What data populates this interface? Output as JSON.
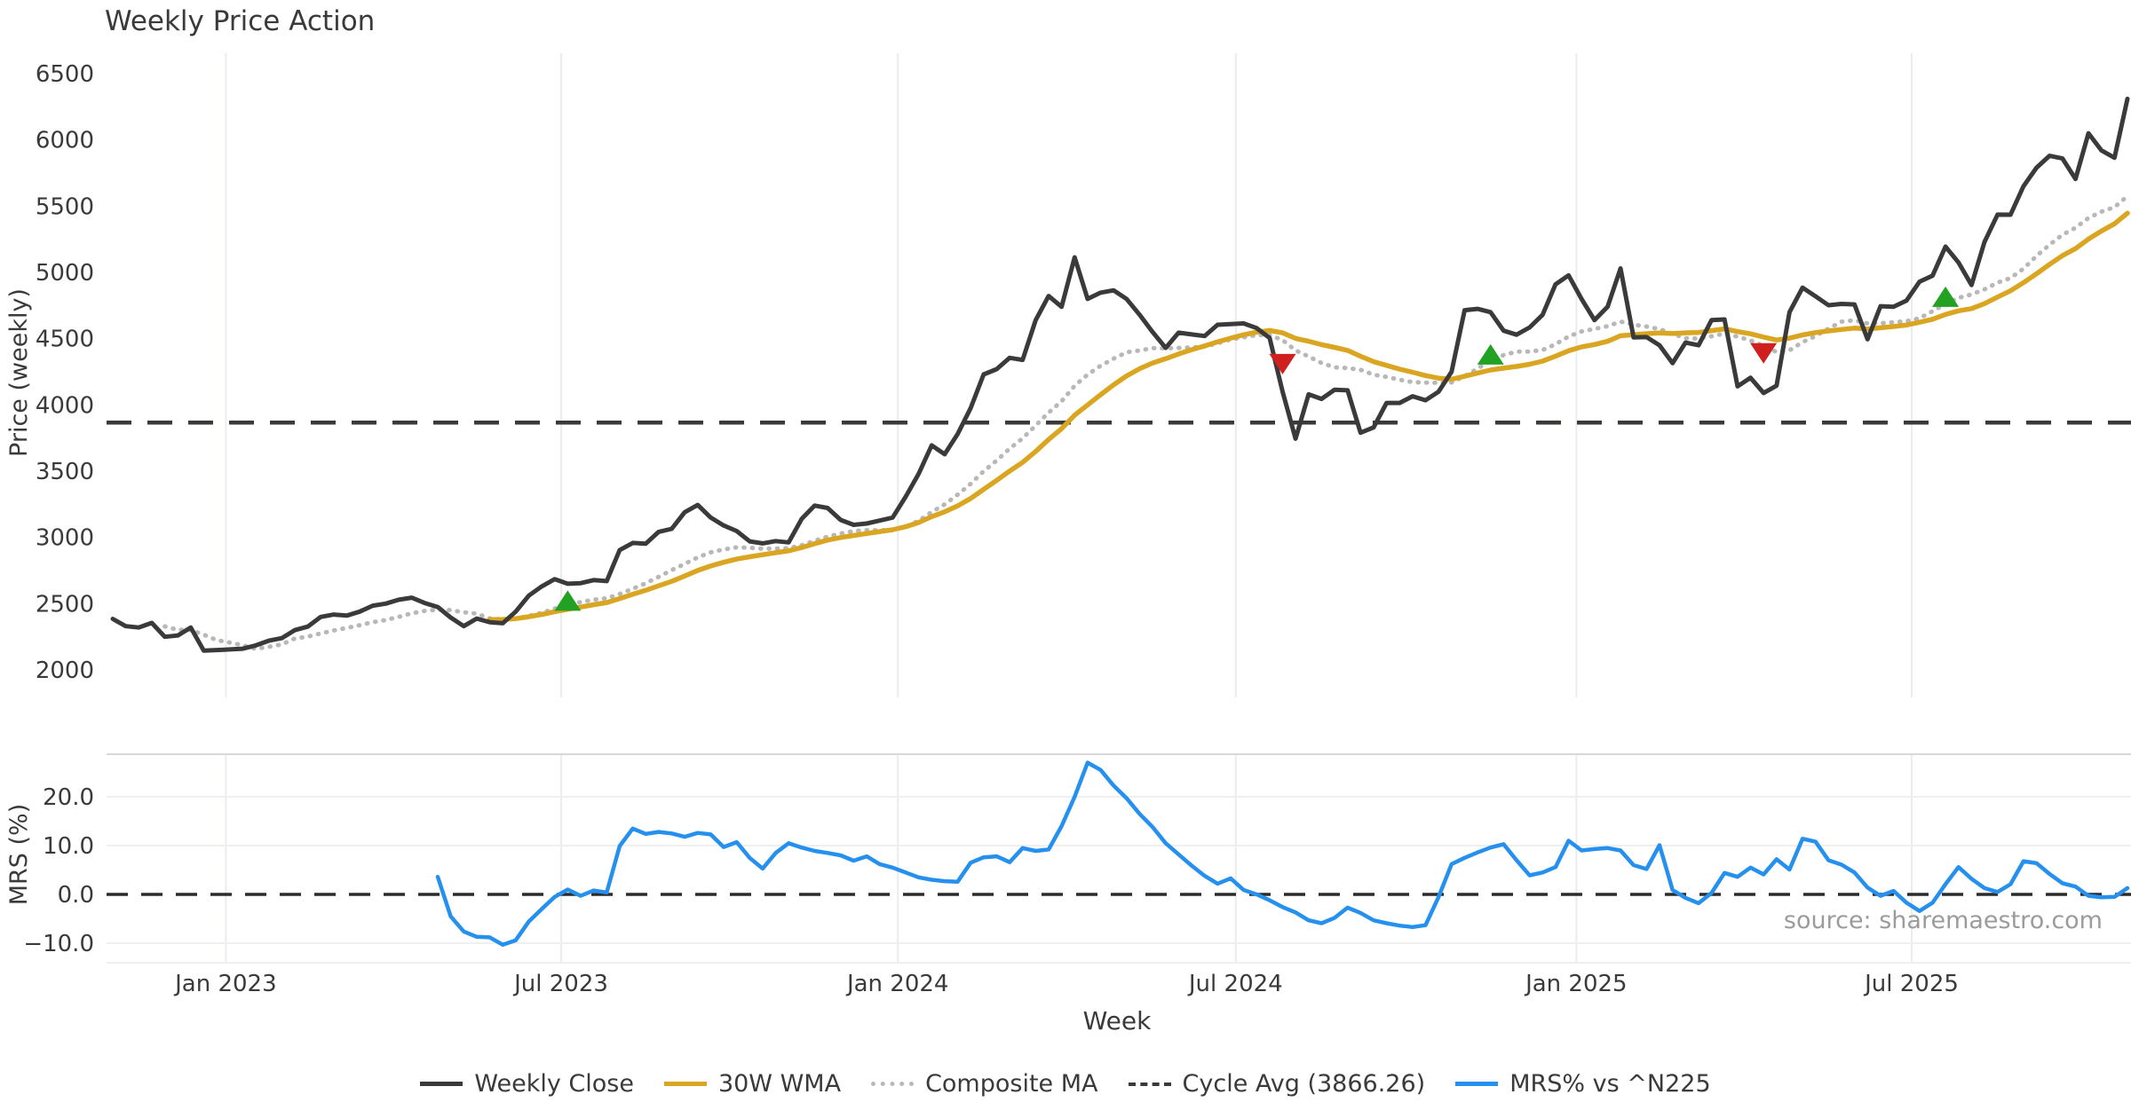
{
  "title": "Weekly Price Action",
  "source_note": "source: sharemaestro.com",
  "colors": {
    "close_line": "#3a3a3a",
    "wma_line": "#DAA520",
    "composite_line": "#b8b8b8",
    "cycle_avg_line": "#3a3a3a",
    "mrs_line": "#2590ee",
    "buy_marker": "#22a122",
    "sell_marker": "#cf1f1f",
    "gridline": "#e9ecf0",
    "panel_spine": "#d8d8d8",
    "mrs_gridline": "#efefef",
    "tick_text": "#3a3a3a",
    "source_text": "#9b9b9b"
  },
  "legend": {
    "items": [
      {
        "label": "Weekly Close",
        "style": "solid",
        "color": "#3a3a3a"
      },
      {
        "label": "30W WMA",
        "style": "solid",
        "color": "#DAA520"
      },
      {
        "label": "Composite MA",
        "style": "dotted",
        "color": "#b8b8b8"
      },
      {
        "label": "Cycle Avg (3866.26)",
        "style": "dashed",
        "color": "#3a3a3a"
      },
      {
        "label": "MRS% vs ^N225",
        "style": "solid",
        "color": "#2590ee"
      }
    ]
  },
  "chart_data": {
    "type": "line",
    "x": {
      "label": "Week",
      "tick_labels": [
        "Jan 2023",
        "Jul 2023",
        "Jan 2024",
        "Jul 2024",
        "Jan 2025",
        "Jul 2025"
      ],
      "tick_week_positions": [
        9.7,
        35.5,
        61.4,
        87.4,
        113.6,
        139.4
      ],
      "weeks_total": 156
    },
    "price_panel": {
      "ylabel": "Price (weekly)",
      "yticks": [
        6500,
        6000,
        5500,
        5000,
        4500,
        4000,
        3500,
        3000,
        2500,
        2000
      ],
      "ylim": [
        1950,
        6650
      ],
      "cycle_avg": 3866.26,
      "series": [
        {
          "name": "Weekly Close",
          "style": "solid",
          "start_week": 1,
          "values": [
            2385,
            2330,
            2320,
            2355,
            2250,
            2260,
            2320,
            2145,
            2150,
            2155,
            2160,
            2185,
            2220,
            2240,
            2300,
            2327,
            2400,
            2418,
            2410,
            2440,
            2485,
            2500,
            2530,
            2545,
            2505,
            2475,
            2395,
            2330,
            2388,
            2360,
            2352,
            2440,
            2560,
            2630,
            2685,
            2650,
            2655,
            2678,
            2670,
            2905,
            2958,
            2952,
            3042,
            3065,
            3190,
            3245,
            3150,
            3090,
            3048,
            2970,
            2955,
            2972,
            2962,
            3140,
            3240,
            3222,
            3132,
            3095,
            3105,
            3127,
            3150,
            3307,
            3480,
            3695,
            3628,
            3780,
            3976,
            4230,
            4270,
            4355,
            4340,
            4640,
            4822,
            4740,
            5114,
            4800,
            4847,
            4865,
            4800,
            4680,
            4550,
            4430,
            4545,
            4532,
            4520,
            4605,
            4610,
            4615,
            4580,
            4505,
            4100,
            3745,
            4080,
            4045,
            4115,
            4110,
            3790,
            3830,
            4015,
            4015,
            4065,
            4035,
            4100,
            4250,
            4715,
            4725,
            4700,
            4560,
            4530,
            4585,
            4680,
            4910,
            4978,
            4800,
            4640,
            4740,
            5030,
            4510,
            4512,
            4450,
            4315,
            4470,
            4450,
            4640,
            4645,
            4140,
            4205,
            4090,
            4145,
            4700,
            4885,
            4820,
            4752,
            4762,
            4758,
            4495,
            4745,
            4740,
            4788,
            4930,
            4975,
            5195,
            5075,
            4905,
            5230,
            5436,
            5435,
            5650,
            5790,
            5880,
            5860,
            5705,
            6050,
            5920,
            5865,
            6310
          ]
        },
        {
          "name": "30W WMA",
          "style": "solid",
          "derived": "wma30"
        },
        {
          "name": "Composite MA",
          "style": "dotted",
          "derived": "composite_sma_5_15_30"
        },
        {
          "name": "Cycle Avg",
          "style": "dashed",
          "value": 3866.26
        }
      ],
      "signals": {
        "buy": [
          {
            "week": 36,
            "price": 2520
          },
          {
            "week": 107,
            "price": 4378
          },
          {
            "week": 142,
            "price": 4813
          }
        ],
        "sell": [
          {
            "week": 91,
            "price": 4311
          },
          {
            "week": 128,
            "price": 4392
          }
        ]
      }
    },
    "mrs_panel": {
      "ylabel": "MRS (%)",
      "ytick_labels": [
        "20.0",
        "10.0",
        "0.0",
        "−10.0"
      ],
      "ytick_values": [
        20,
        10,
        0,
        -10
      ],
      "zero_line": 0,
      "series": [
        {
          "name": "MRS% vs ^N225",
          "style": "solid",
          "start_week": 26,
          "values": [
            3.6,
            -4.5,
            -7.6,
            -8.7,
            -8.8,
            -10.3,
            -9.4,
            -5.6,
            -3.0,
            -0.5,
            1.0,
            -0.3,
            0.8,
            0.4,
            9.9,
            13.5,
            12.4,
            12.8,
            12.5,
            11.8,
            12.6,
            12.3,
            9.7,
            10.7,
            7.5,
            5.3,
            8.5,
            10.5,
            9.6,
            8.9,
            8.5,
            8.0,
            6.9,
            7.8,
            6.2,
            5.5,
            4.5,
            3.5,
            3.0,
            2.7,
            2.6,
            6.5,
            7.6,
            7.8,
            6.6,
            9.5,
            8.9,
            9.2,
            14.0,
            20.0,
            27.0,
            25.5,
            22.3,
            19.7,
            16.5,
            13.8,
            10.5,
            8.2,
            5.9,
            3.8,
            2.2,
            3.3,
            0.9,
            0.0,
            -1.2,
            -2.6,
            -3.7,
            -5.3,
            -5.9,
            -4.8,
            -2.7,
            -3.8,
            -5.3,
            -5.9,
            -6.4,
            -6.7,
            -6.3,
            -0.5,
            6.2,
            7.5,
            8.6,
            9.6,
            10.3,
            7.0,
            3.9,
            4.5,
            5.6,
            11.0,
            9.0,
            9.3,
            9.5,
            9.0,
            6.0,
            5.2,
            10.1,
            0.9,
            -0.7,
            -1.8,
            0.3,
            4.4,
            3.6,
            5.5,
            4.1,
            7.2,
            5.1,
            11.4,
            10.8,
            7.0,
            6.1,
            4.5,
            1.4,
            -0.3,
            0.7,
            -1.7,
            -3.4,
            -1.7,
            2.1,
            5.6,
            3.2,
            1.3,
            0.5,
            2.1,
            6.8,
            6.4,
            4.2,
            2.3,
            1.6,
            -0.3,
            -0.6,
            -0.5,
            1.3
          ]
        }
      ]
    }
  }
}
